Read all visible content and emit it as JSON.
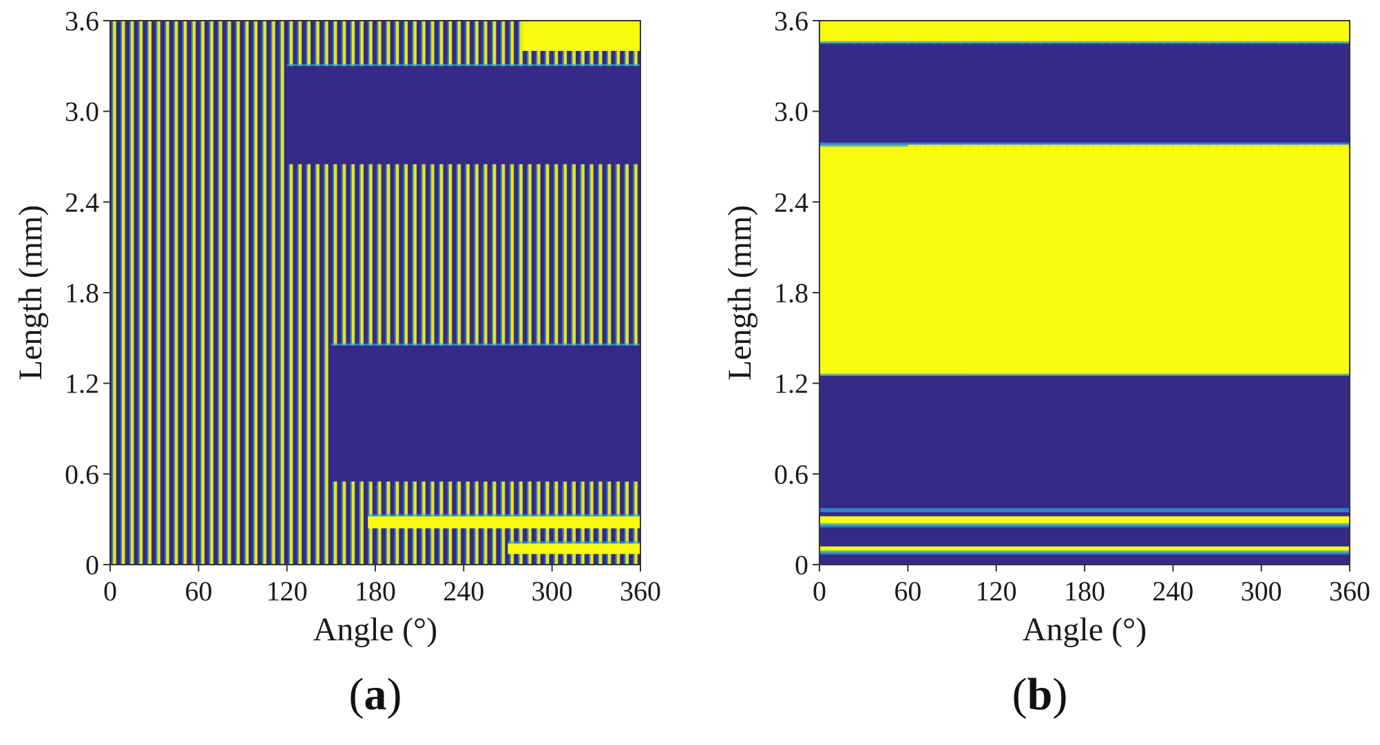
{
  "chart_data": [
    {
      "type": "heatmap",
      "panel_label": "a",
      "title": "",
      "xlabel": "Angle (°)",
      "ylabel": "Length (mm)",
      "xlim": [
        0,
        360
      ],
      "ylim": [
        0,
        3.6
      ],
      "xticks": [
        0,
        60,
        120,
        180,
        240,
        300,
        360
      ],
      "xtick_labels": [
        "0",
        "60",
        "120",
        "180",
        "240",
        "300",
        "360"
      ],
      "yticks": [
        0,
        0.6,
        1.2,
        1.8,
        2.4,
        3.0,
        3.6
      ],
      "ytick_labels": [
        "0",
        "0.6",
        "1.2",
        "1.8",
        "2.4",
        "3.0",
        "3.6"
      ],
      "colors": {
        "low": "#352a87",
        "high": "#f9fb0e",
        "mid": "#2d9fd8"
      },
      "stripe_count": 60,
      "regions": [
        {
          "level": "low",
          "angle": [
            120,
            360
          ],
          "length": [
            2.65,
            3.3
          ]
        },
        {
          "level": "low",
          "angle": [
            150,
            360
          ],
          "length": [
            0.55,
            1.45
          ]
        },
        {
          "level": "high",
          "angle": [
            280,
            360
          ],
          "length": [
            3.4,
            3.6
          ]
        },
        {
          "level": "high",
          "angle": [
            175,
            360
          ],
          "length": [
            0.24,
            0.32
          ]
        },
        {
          "level": "high",
          "angle": [
            270,
            360
          ],
          "length": [
            0.07,
            0.14
          ]
        },
        {
          "level": "mid",
          "angle": [
            0,
            360
          ],
          "length": [
            1.5,
            2.6
          ],
          "pattern": "stripes"
        }
      ]
    },
    {
      "type": "heatmap",
      "panel_label": "b",
      "title": "",
      "xlabel": "Angle (°)",
      "ylabel": "Length (mm)",
      "xlim": [
        0,
        360
      ],
      "ylim": [
        0,
        3.6
      ],
      "xticks": [
        0,
        60,
        120,
        180,
        240,
        300,
        360
      ],
      "xtick_labels": [
        "0",
        "60",
        "120",
        "180",
        "240",
        "300",
        "360"
      ],
      "yticks": [
        0,
        0.6,
        1.2,
        1.8,
        2.4,
        3.0,
        3.6
      ],
      "ytick_labels": [
        "0",
        "0.6",
        "1.2",
        "1.8",
        "2.4",
        "3.0",
        "3.6"
      ],
      "colors": {
        "low": "#352a87",
        "high": "#f9fb0e",
        "mid": "#2d9fd8"
      },
      "regions": [
        {
          "level": "high",
          "angle": [
            0,
            360
          ],
          "length": [
            1.25,
            2.78
          ]
        },
        {
          "level": "low",
          "angle": [
            0,
            360
          ],
          "length": [
            2.78,
            3.45
          ]
        },
        {
          "level": "high",
          "angle": [
            0,
            360
          ],
          "length": [
            3.45,
            3.6
          ]
        },
        {
          "level": "low",
          "angle": [
            0,
            360
          ],
          "length": [
            0.36,
            1.25
          ]
        },
        {
          "level": "high",
          "angle": [
            0,
            360
          ],
          "length": [
            0.26,
            0.32
          ]
        },
        {
          "level": "high",
          "angle": [
            0,
            360
          ],
          "length": [
            0.08,
            0.12
          ]
        }
      ]
    }
  ]
}
